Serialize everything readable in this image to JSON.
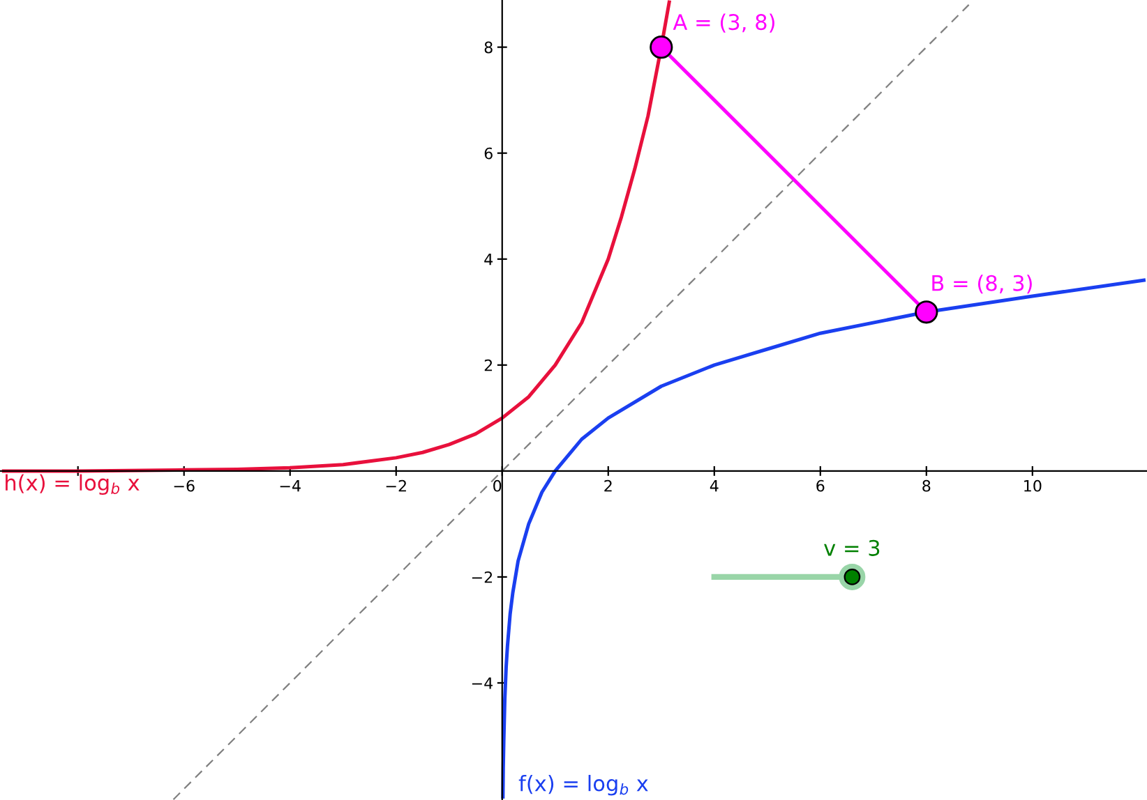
{
  "chart_data": {
    "type": "line",
    "xlim": [
      -9.47,
      12.16
    ],
    "ylim": [
      -6.21,
      8.89
    ],
    "xticks": [
      {
        "value": -8,
        "label": null
      },
      -6,
      -4,
      -2,
      0,
      2,
      4,
      6,
      8,
      10
    ],
    "yticks": [
      -4,
      -2,
      2,
      4,
      6,
      8
    ],
    "grid": false,
    "series": [
      {
        "type": "line",
        "color": "#808080",
        "line_style": "dashed",
        "x": [
          -6.2,
          8.8
        ],
        "values": [
          -6.2,
          8.8
        ]
      },
      {
        "type": "line",
        "color": "#e8103c",
        "line_style": "solid",
        "x": [
          -9.4,
          -8,
          -6,
          -5,
          -4,
          -3,
          -2,
          -1.5,
          -1,
          -0.5,
          0,
          0.5,
          1,
          1.5,
          2,
          2.25,
          2.5,
          2.75,
          3,
          3.15
        ],
        "values": [
          0,
          0,
          0.02,
          0.03,
          0.06,
          0.12,
          0.25,
          0.35,
          0.5,
          0.7,
          1,
          1.4,
          2,
          2.8,
          4,
          4.8,
          5.7,
          6.7,
          8,
          8.85
        ]
      },
      {
        "type": "line",
        "color": "#1a3ff0",
        "line_style": "solid",
        "x": [
          0.014,
          0.02,
          0.03,
          0.05,
          0.075,
          0.1,
          0.15,
          0.2,
          0.3,
          0.5,
          0.75,
          1,
          1.5,
          2,
          3,
          4,
          5,
          6,
          8,
          10,
          12.1
        ],
        "values": [
          -6.15,
          -5.6,
          -5.1,
          -4.3,
          -3.7,
          -3.3,
          -2.7,
          -2.3,
          -1.7,
          -1,
          -0.4,
          0,
          0.6,
          1,
          1.6,
          2,
          2.3,
          2.6,
          3,
          3.3,
          3.6
        ]
      },
      {
        "type": "line",
        "color": "#ff00ff",
        "line_style": "solid",
        "x": [
          3,
          8
        ],
        "values": [
          8,
          3
        ]
      },
      {
        "type": "scatter",
        "color": "#ff00ff",
        "marker": "circle",
        "x": [
          3,
          8
        ],
        "values": [
          8,
          3
        ]
      }
    ],
    "annotations": [
      {
        "text": "A = (3, 8)",
        "x": 3,
        "y": 8
      },
      {
        "text": "B = (8, 3)",
        "x": 8,
        "y": 3
      },
      {
        "text": "h(x) = log$_{b}$ x",
        "x": -9.4,
        "y": 0
      },
      {
        "text": "f(x) = log$_{b}$ x",
        "x": 0.014,
        "y": -6.15
      },
      {
        "text": "v = 3",
        "x": 6.6,
        "y": -2
      }
    ]
  }
}
